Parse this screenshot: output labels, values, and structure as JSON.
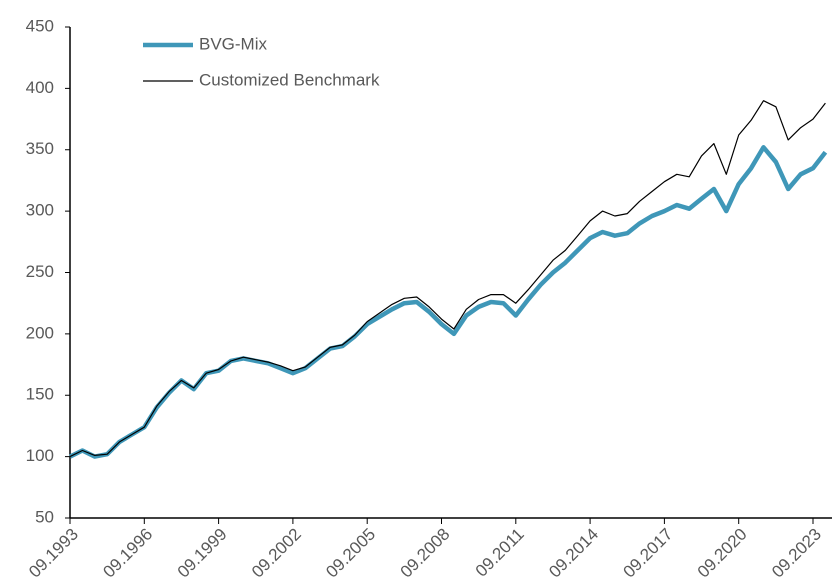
{
  "chart_data": {
    "type": "line",
    "categories": [
      "09.1993",
      null,
      null,
      null,
      null,
      null,
      "09.1996",
      null,
      null,
      null,
      null,
      null,
      "09.1999",
      null,
      null,
      null,
      null,
      null,
      "09.2002",
      null,
      null,
      null,
      null,
      null,
      "09.2005",
      null,
      null,
      null,
      null,
      null,
      "09.2008",
      null,
      null,
      null,
      null,
      null,
      "09.2011",
      null,
      null,
      null,
      null,
      null,
      "09.2014",
      null,
      null,
      null,
      null,
      null,
      "09.2017",
      null,
      null,
      null,
      null,
      null,
      "09.2020",
      null,
      null,
      null,
      null,
      null,
      "09.2023",
      null
    ],
    "series": [
      {
        "name": "BVG-Mix",
        "color": "#3f97b8",
        "values": [
          100,
          105,
          100,
          102,
          112,
          118,
          124,
          140,
          152,
          162,
          155,
          168,
          170,
          178,
          180,
          178,
          176,
          172,
          168,
          172,
          180,
          188,
          190,
          198,
          208,
          214,
          220,
          225,
          226,
          218,
          208,
          200,
          215,
          222,
          226,
          225,
          215,
          228,
          240,
          250,
          258,
          268,
          278,
          283,
          280,
          282,
          290,
          296,
          300,
          305,
          302,
          310,
          318,
          300,
          322,
          335,
          352,
          340,
          318,
          330,
          335,
          348
        ]
      },
      {
        "name": "Customized Benchmark",
        "color": "#000000",
        "values": [
          100,
          105,
          101,
          102,
          112,
          118,
          124,
          141,
          153,
          162,
          156,
          168,
          171,
          178,
          181,
          179,
          177,
          174,
          170,
          173,
          181,
          189,
          191,
          199,
          210,
          217,
          224,
          229,
          230,
          222,
          212,
          204,
          220,
          228,
          232,
          232,
          225,
          236,
          248,
          260,
          268,
          280,
          292,
          300,
          296,
          298,
          308,
          316,
          324,
          330,
          328,
          345,
          355,
          330,
          362,
          374,
          390,
          385,
          358,
          368,
          375,
          388
        ]
      }
    ],
    "ylim": [
      50,
      450
    ],
    "yticks": [
      50,
      100,
      150,
      200,
      250,
      300,
      350,
      400,
      450
    ]
  }
}
